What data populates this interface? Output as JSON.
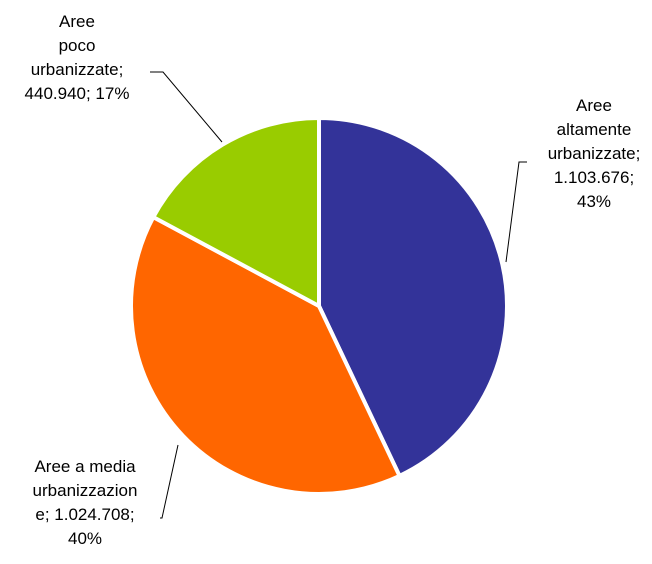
{
  "chart_data": {
    "type": "pie",
    "title": "",
    "slices": [
      {
        "category": "Aree altamente urbanizzate",
        "value": 1103676,
        "value_text": "1.103.676",
        "percent_text": "43%",
        "color": "#333399",
        "label_lines": [
          "Aree",
          "altamente",
          "urbanizzate;",
          "1.103.676;",
          "43%"
        ]
      },
      {
        "category": "Aree a media urbanizzazione",
        "value": 1024708,
        "value_text": "1.024.708",
        "percent_text": "40%",
        "color": "#ff6600",
        "label_lines": [
          "Aree a media",
          "urbanizzazion",
          "e; 1.024.708;",
          "40%"
        ]
      },
      {
        "category": "Aree poco urbanizzate",
        "value": 440940,
        "value_text": "440.940",
        "percent_text": "17%",
        "color": "#99cc00",
        "label_lines": [
          "Aree",
          "poco",
          "urbanizzate;",
          "440.940; 17%"
        ]
      }
    ]
  }
}
